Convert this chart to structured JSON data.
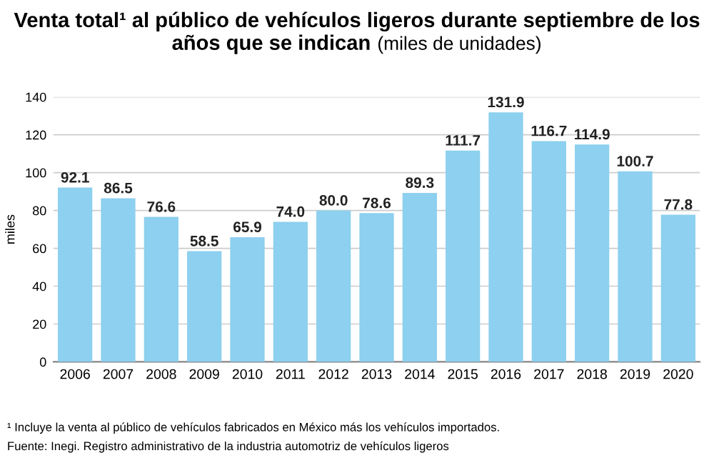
{
  "chart_data": {
    "type": "bar",
    "title": "Venta total¹ al público de vehículos ligeros durante septiembre de los años que se indican",
    "subtitle": "(miles de unidades)",
    "ylabel": "miles",
    "categories": [
      "2006",
      "2007",
      "2008",
      "2009",
      "2010",
      "2011",
      "2012",
      "2013",
      "2014",
      "2015",
      "2016",
      "2017",
      "2018",
      "2019",
      "2020"
    ],
    "values": [
      92.1,
      86.5,
      76.6,
      58.5,
      65.9,
      74.0,
      80.0,
      78.6,
      89.3,
      111.7,
      131.9,
      116.7,
      114.9,
      100.7,
      77.8
    ],
    "value_labels": [
      "92.1",
      "86.5",
      "76.6",
      "58.5",
      "65.9",
      "74.0",
      "80.0",
      "78.6",
      "89.3",
      "111.7",
      "131.9",
      "116.7",
      "114.9",
      "100.7",
      "77.8"
    ],
    "color": "#8dd0ef",
    "ylim": [
      0,
      140
    ],
    "yticks": [
      0,
      20,
      40,
      60,
      80,
      100,
      120,
      140
    ],
    "grid": "y",
    "annotations": [
      "¹ Incluye la venta al público de vehículos fabricados en México más los vehículos importados.",
      "Fuente: Inegi. Registro administrativo de la industria automotriz de vehículos ligeros"
    ]
  }
}
